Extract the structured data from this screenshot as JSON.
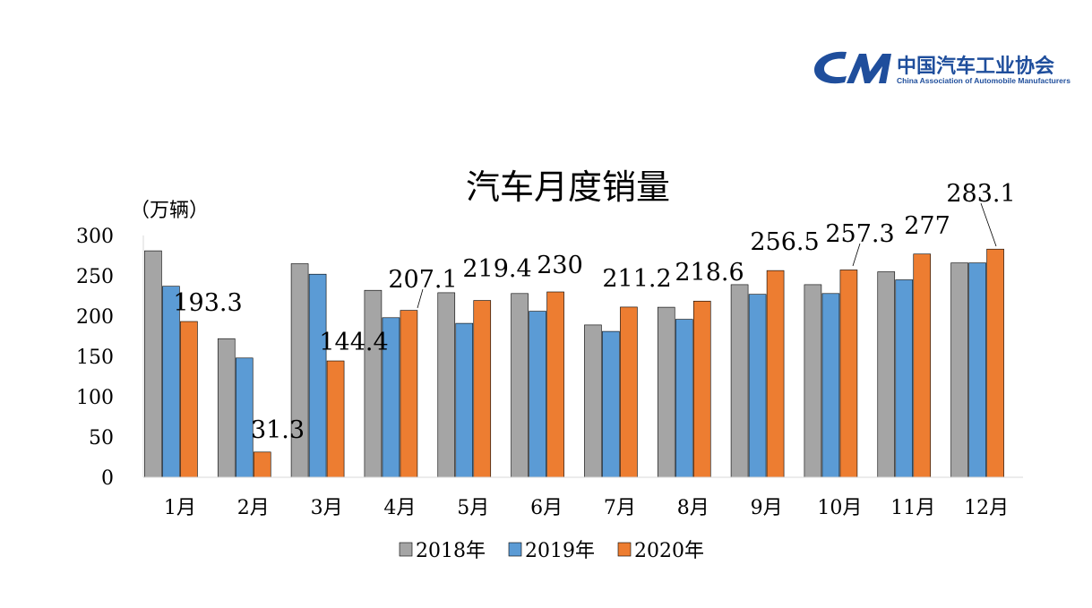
{
  "logo": {
    "name": "中国汽车工业协会",
    "english": "China Association of Automobile Manufacturers",
    "mark": "CAM-logo-icon",
    "color": "#1f4e9c"
  },
  "chart_data": {
    "type": "bar",
    "title": "汽车月度销量",
    "ylabel": "（万辆）",
    "xlabel": "",
    "categories": [
      "1月",
      "2月",
      "3月",
      "4月",
      "5月",
      "6月",
      "7月",
      "8月",
      "9月",
      "10月",
      "11月",
      "12月"
    ],
    "ylim": [
      0,
      300
    ],
    "yticks": [
      0,
      50,
      100,
      150,
      200,
      250,
      300
    ],
    "series": [
      {
        "name": "2018年",
        "color": "#a5a5a5",
        "values": [
          281,
          172,
          265,
          232,
          229,
          228,
          189,
          211,
          239,
          239,
          255,
          266
        ]
      },
      {
        "name": "2019年",
        "color": "#5b9bd5",
        "values": [
          237,
          148,
          252,
          198,
          191,
          206,
          181,
          196,
          227,
          228,
          245,
          266
        ]
      },
      {
        "name": "2020年",
        "color": "#ed7d31",
        "values": [
          193.3,
          31.3,
          144.4,
          207.1,
          219.4,
          230,
          211.2,
          218.6,
          256.5,
          257.3,
          277,
          283.1
        ]
      }
    ],
    "data_labels": [
      "193.3",
      "31.3",
      "144.4",
      "207.1",
      "219.4",
      "230",
      "211.2",
      "218.6",
      "256.5",
      "257.3",
      "277",
      "283.1"
    ],
    "legend_position": "bottom",
    "grid": false
  }
}
